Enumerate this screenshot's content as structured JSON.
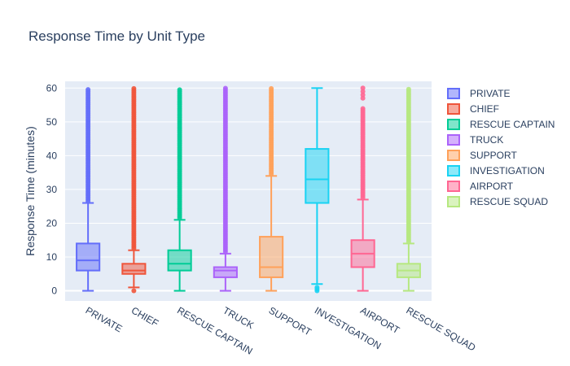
{
  "chart_data": {
    "type": "box",
    "title": "Response Time by Unit Type",
    "xlabel": "",
    "ylabel": "Response Time (minutes)",
    "ylim": [
      -3,
      62
    ],
    "yticks": [
      0,
      10,
      20,
      30,
      40,
      50,
      60
    ],
    "grid": true,
    "legend_position": "right",
    "series": [
      {
        "name": "PRIVATE",
        "color": "#636efa",
        "min": 0,
        "q1": 6,
        "median": 9,
        "q3": 14,
        "max": 26,
        "outliers_from": 26,
        "outliers_to": 60
      },
      {
        "name": "CHIEF",
        "color": "#ef553b",
        "min": 1,
        "q1": 5,
        "median": 6,
        "q3": 8,
        "max": 12,
        "outliers_from": 12,
        "outliers_to": 60,
        "low_outliers": [
          0
        ]
      },
      {
        "name": "RESCUE CAPTAIN",
        "color": "#00cc96",
        "min": 0,
        "q1": 6,
        "median": 8,
        "q3": 12,
        "max": 21,
        "outliers_from": 21,
        "outliers_to": 60
      },
      {
        "name": "TRUCK",
        "color": "#ab63fa",
        "min": 0,
        "q1": 4,
        "median": 6,
        "q3": 7,
        "max": 11,
        "outliers_from": 11,
        "outliers_to": 60
      },
      {
        "name": "SUPPORT",
        "color": "#ffa15a",
        "min": 0,
        "q1": 4,
        "median": 7,
        "q3": 16,
        "max": 34,
        "outliers_from": 34,
        "outliers_to": 60
      },
      {
        "name": "INVESTIGATION",
        "color": "#19d3f3",
        "min": 2,
        "q1": 26,
        "median": 33,
        "q3": 42,
        "max": 60,
        "low_outliers": [
          0,
          0.5,
          1
        ]
      },
      {
        "name": "AIRPORT",
        "color": "#ff6692",
        "min": 0,
        "q1": 7,
        "median": 11,
        "q3": 15,
        "max": 27,
        "outliers_from": 27,
        "outliers_to": 54,
        "extra_outliers": [
          57,
          58,
          59,
          60
        ]
      },
      {
        "name": "RESCUE SQUAD",
        "color": "#b6e880",
        "min": 0,
        "q1": 4,
        "median": 6,
        "q3": 8,
        "max": 14,
        "outliers_from": 14,
        "outliers_to": 60
      }
    ]
  }
}
